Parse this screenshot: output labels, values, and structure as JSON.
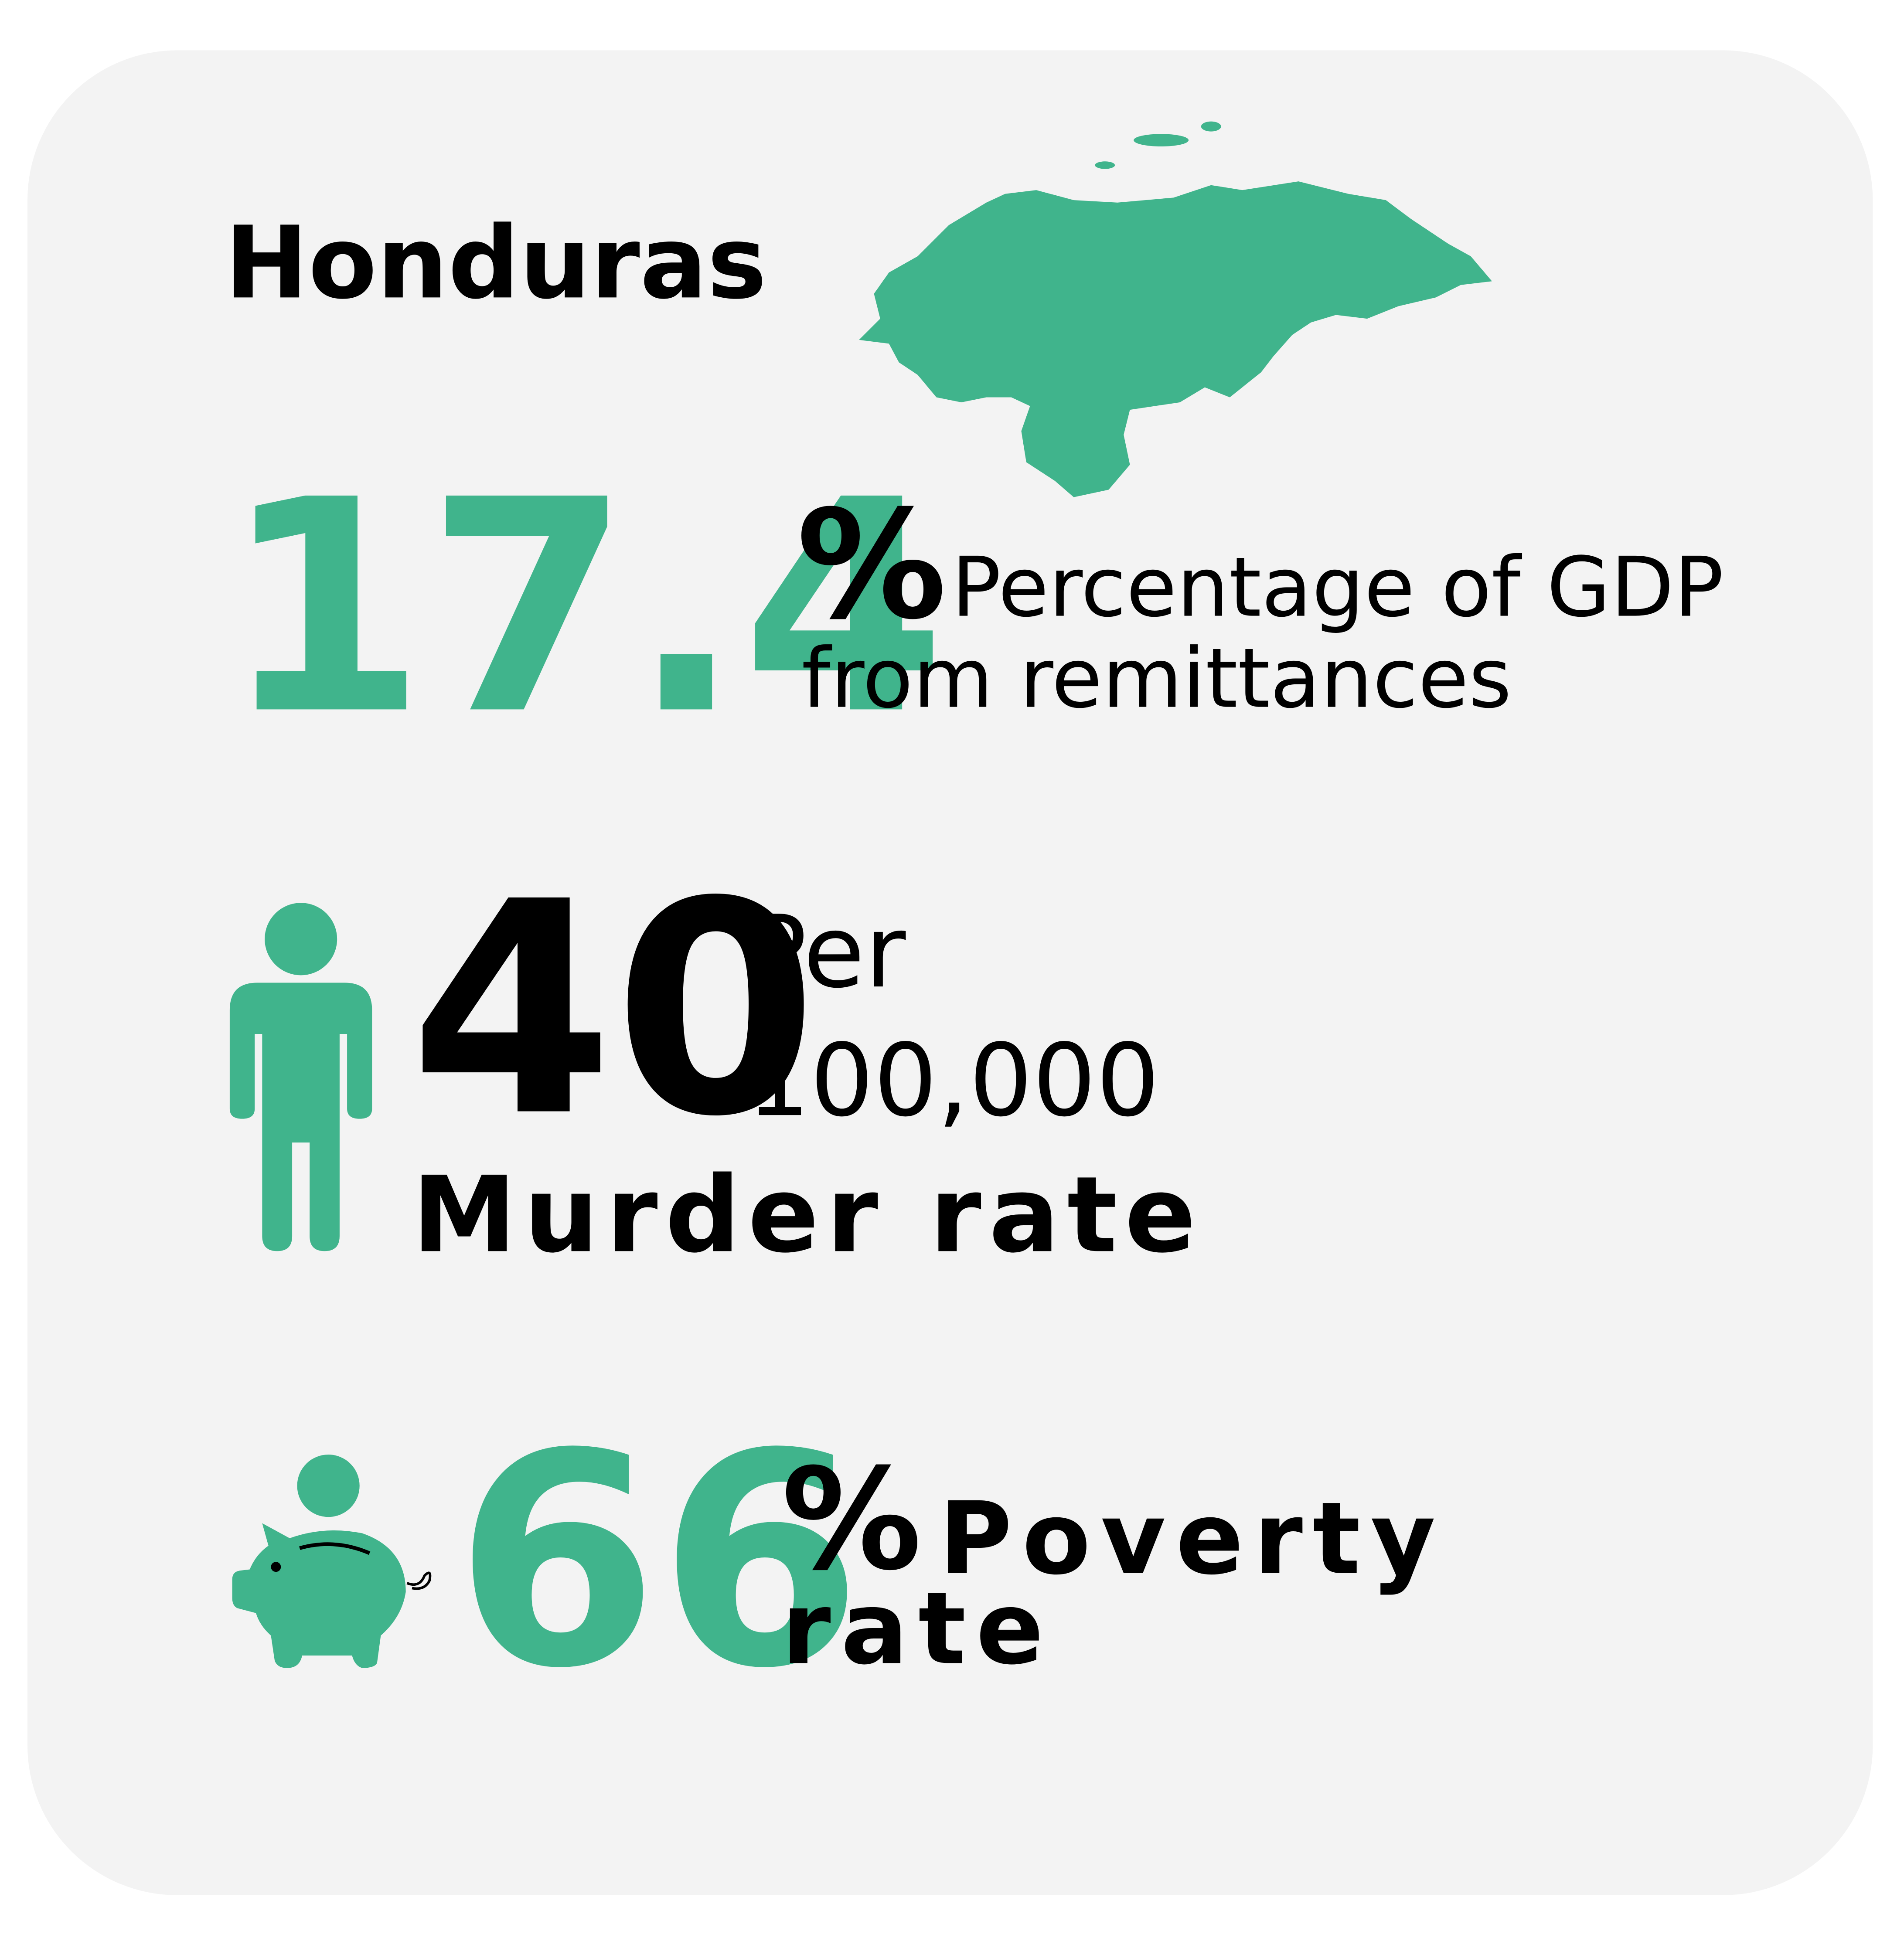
{
  "header": {
    "title": "Honduras"
  },
  "stats": [
    {
      "value": "17.4",
      "unit": "%",
      "label_lines": [
        "Percentage of GDP",
        "from remittances"
      ]
    },
    {
      "value": "40",
      "unit_lines": [
        "Per",
        "100,000"
      ],
      "label": "Murder rate"
    },
    {
      "value": "66",
      "unit": "%",
      "label_lines": [
        "Poverty",
        "rate"
      ]
    }
  ]
}
